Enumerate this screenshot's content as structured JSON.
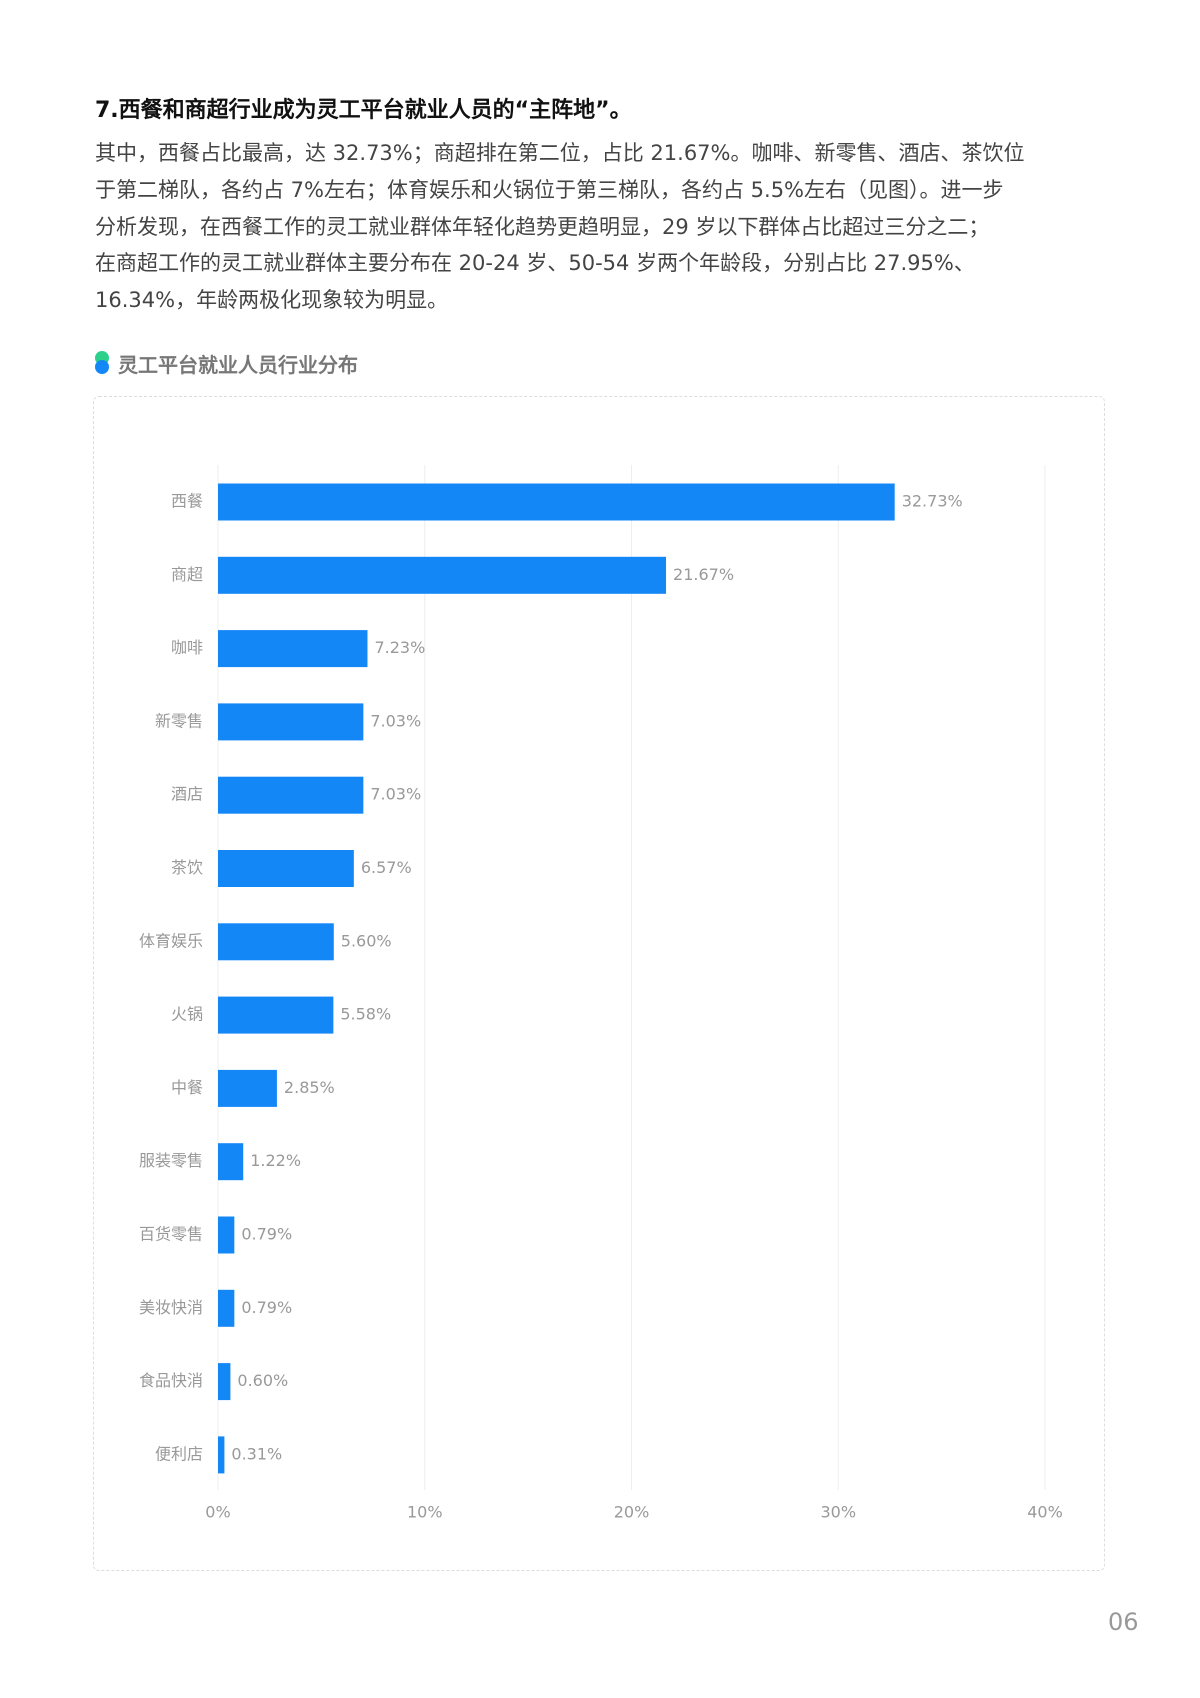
{
  "heading": "7.西餐和商超行业成为灵工平台就业人员的“主阵地”。",
  "paragraph": [
    "其中，西餐占比最高，达 32.73%；商超排在第二位，占比 21.67%。咖啡、新零售、酒店、茶饮位",
    "于第二梯队，各约占 7%左右；体育娱乐和火锅位于第三梯队，各约占 5.5%左右（见图）。进一步",
    "分析发现，在西餐工作的灵工就业群体年轻化趋势更趋明显，29 岁以下群体占比超过三分之二；",
    "在商超工作的灵工就业群体主要分布在 20-24 岁、50-54 岁两个年龄段，分别占比 27.95%、",
    "16.34%，年龄两极化现象较为明显。"
  ],
  "chart_data": {
    "type": "bar",
    "title": "灵工平台就业人员行业分布",
    "categories": [
      "西餐",
      "商超",
      "咖啡",
      "新零售",
      "酒店",
      "茶饮",
      "体育娱乐",
      "火锅",
      "中餐",
      "服装零售",
      "百货零售",
      "美妆快消",
      "食品快消",
      "便利店"
    ],
    "values": [
      32.73,
      21.67,
      7.23,
      7.03,
      7.03,
      6.57,
      5.6,
      5.58,
      2.85,
      1.22,
      0.79,
      0.79,
      0.6,
      0.31
    ],
    "value_labels": [
      "32.73%",
      "21.67%",
      "7.23%",
      "7.03%",
      "7.03%",
      "6.57%",
      "5.60%",
      "5.58%",
      "2.85%",
      "1.22%",
      "0.79%",
      "0.79%",
      "0.60%",
      "0.31%"
    ],
    "color": "#1487f7",
    "xlim": [
      0,
      40
    ],
    "xticks": [
      {
        "value": 0,
        "label": "0%"
      },
      {
        "value": 10,
        "label": "10%"
      },
      {
        "value": 20,
        "label": "20%"
      },
      {
        "value": 30,
        "label": "30%"
      },
      {
        "value": 40,
        "label": "40%"
      }
    ],
    "grid": true
  },
  "page_number": "06"
}
